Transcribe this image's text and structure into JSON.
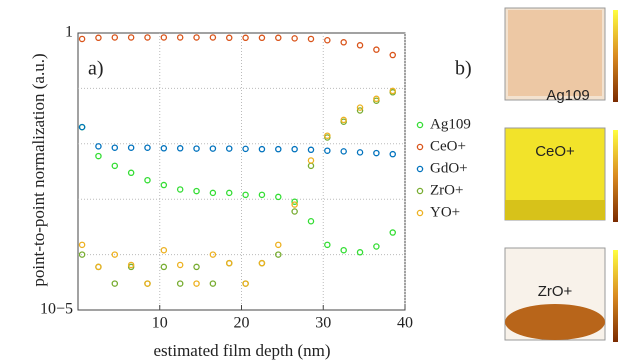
{
  "chart_data": {
    "type": "scatter",
    "panel_label": "a)",
    "x_label": "estimated film depth (nm)",
    "y_label": "point-to-point normalization (a.u.)",
    "xlim": [
      0,
      40
    ],
    "xticks": [
      10,
      20,
      30,
      40
    ],
    "ylim": [
      1e-05,
      1
    ],
    "yticks": [
      1,
      {
        "value": 1e-05,
        "label": "10−5"
      }
    ],
    "log_y": true,
    "grid": true,
    "x": [
      0.5,
      2.5,
      4.5,
      6.5,
      8.5,
      10.5,
      12.5,
      14.5,
      16.5,
      18.5,
      20.5,
      22.5,
      24.5,
      26.5,
      28.5,
      30.5,
      32.5,
      34.5,
      36.5,
      38.5
    ],
    "series": [
      {
        "name": "Ag109",
        "color": "#33dd33",
        "values": [
          0.02,
          0.006,
          0.004,
          0.003,
          0.0022,
          0.0018,
          0.0015,
          0.0014,
          0.0013,
          0.0013,
          0.0012,
          0.0012,
          0.0011,
          0.0009,
          0.0004,
          0.00015,
          0.00012,
          0.00011,
          0.00014,
          0.00025
        ]
      },
      {
        "name": "CeO+",
        "color": "#d95319",
        "values": [
          0.78,
          0.82,
          0.83,
          0.83,
          0.83,
          0.83,
          0.83,
          0.83,
          0.83,
          0.82,
          0.82,
          0.82,
          0.82,
          0.8,
          0.78,
          0.74,
          0.68,
          0.6,
          0.5,
          0.4
        ]
      },
      {
        "name": "GdO+",
        "color": "#0072bd",
        "values": [
          0.02,
          0.009,
          0.0085,
          0.0085,
          0.0085,
          0.0083,
          0.0083,
          0.0082,
          0.0082,
          0.0082,
          0.0081,
          0.008,
          0.008,
          0.008,
          0.0078,
          0.0075,
          0.0073,
          0.007,
          0.0068,
          0.0065
        ]
      },
      {
        "name": "ZrO+",
        "color": "#77ac30",
        "values": [
          0.0001,
          6e-05,
          3e-05,
          6e-05,
          3e-05,
          6e-05,
          3e-05,
          6e-05,
          3e-05,
          7e-05,
          3e-05,
          7e-05,
          0.0001,
          0.0006,
          0.004,
          0.013,
          0.025,
          0.04,
          0.06,
          0.085
        ]
      },
      {
        "name": "YO+",
        "color": "#edb120",
        "values": [
          0.00015,
          6e-05,
          0.0001,
          6.5e-05,
          3e-05,
          0.00012,
          6.5e-05,
          3e-05,
          0.0001,
          7e-05,
          3e-05,
          7e-05,
          0.00015,
          0.0008,
          0.005,
          0.014,
          0.027,
          0.045,
          0.065,
          0.09
        ]
      }
    ]
  },
  "panel_b": {
    "panel_label": "b)",
    "labels": [
      "Ag109",
      "CeO+",
      "ZrO+"
    ]
  }
}
